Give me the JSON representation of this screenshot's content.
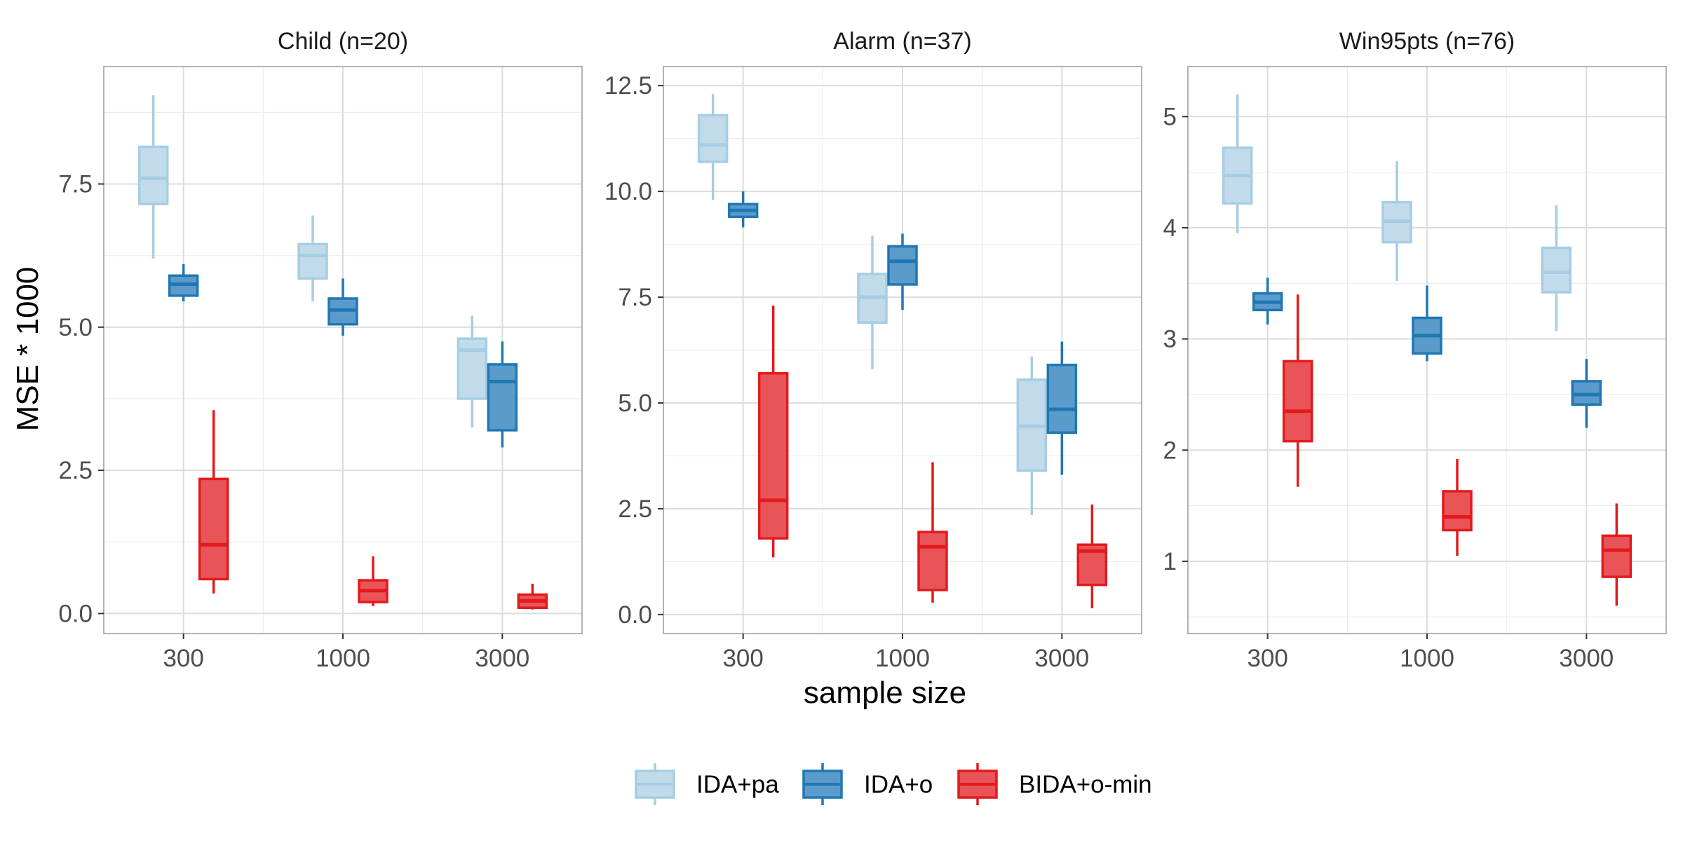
{
  "chart_data": {
    "type": "boxplot",
    "xlabel": "sample size",
    "ylabel": "MSE * 1000",
    "categories": [
      "300",
      "1000",
      "3000"
    ],
    "legend": {
      "position": "bottom",
      "entries": [
        {
          "label": "IDA+pa",
          "fill": "#c2dbeb",
          "stroke": "#a6cde3"
        },
        {
          "label": "IDA+o",
          "fill": "#5b9bcb",
          "stroke": "#1f78b4"
        },
        {
          "label": "BIDA+o-min",
          "fill": "#e95459",
          "stroke": "#e31a1c"
        }
      ]
    },
    "grid": true,
    "panels": [
      {
        "title": "Child (n=20)",
        "ylim": [
          -0.35,
          9.55
        ],
        "yticks": [
          {
            "value": 0,
            "label": "0.0"
          },
          {
            "value": 2.5,
            "label": "2.5"
          },
          {
            "value": 5,
            "label": "5.0"
          },
          {
            "value": 7.5,
            "label": "7.5"
          }
        ],
        "minor_yticks": [
          1.25,
          3.75,
          6.25,
          8.75
        ],
        "series": [
          {
            "name": "IDA+pa",
            "boxes": [
              {
                "min": 6.2,
                "q1": 7.15,
                "median": 7.6,
                "q3": 8.15,
                "max": 9.05
              },
              {
                "min": 5.45,
                "q1": 5.85,
                "median": 6.25,
                "q3": 6.45,
                "max": 6.95
              },
              {
                "min": 3.25,
                "q1": 3.75,
                "median": 4.6,
                "q3": 4.8,
                "max": 5.2
              }
            ]
          },
          {
            "name": "IDA+o",
            "boxes": [
              {
                "min": 5.45,
                "q1": 5.55,
                "median": 5.75,
                "q3": 5.9,
                "max": 6.1
              },
              {
                "min": 4.85,
                "q1": 5.05,
                "median": 5.3,
                "q3": 5.5,
                "max": 5.85
              },
              {
                "min": 2.9,
                "q1": 3.2,
                "median": 4.05,
                "q3": 4.35,
                "max": 4.75
              }
            ]
          },
          {
            "name": "BIDA+o-min",
            "boxes": [
              {
                "min": 0.35,
                "q1": 0.6,
                "median": 1.2,
                "q3": 2.35,
                "max": 3.55
              },
              {
                "min": 0.13,
                "q1": 0.2,
                "median": 0.4,
                "q3": 0.58,
                "max": 1.0
              },
              {
                "min": 0.07,
                "q1": 0.1,
                "median": 0.22,
                "q3": 0.33,
                "max": 0.52
              }
            ]
          }
        ]
      },
      {
        "title": "Alarm (n=37)",
        "ylim": [
          -0.45,
          12.95
        ],
        "yticks": [
          {
            "value": 0,
            "label": "0.0"
          },
          {
            "value": 2.5,
            "label": "2.5"
          },
          {
            "value": 5,
            "label": "5.0"
          },
          {
            "value": 7.5,
            "label": "7.5"
          },
          {
            "value": 10,
            "label": "10.0"
          },
          {
            "value": 12.5,
            "label": "12.5"
          }
        ],
        "minor_yticks": [
          1.25,
          3.75,
          6.25,
          8.75,
          11.25
        ],
        "series": [
          {
            "name": "IDA+pa",
            "boxes": [
              {
                "min": 9.8,
                "q1": 10.7,
                "median": 11.1,
                "q3": 11.8,
                "max": 12.3
              },
              {
                "min": 5.8,
                "q1": 6.9,
                "median": 7.5,
                "q3": 8.05,
                "max": 8.95
              },
              {
                "min": 2.35,
                "q1": 3.4,
                "median": 4.45,
                "q3": 5.55,
                "max": 6.1
              }
            ]
          },
          {
            "name": "IDA+o",
            "boxes": [
              {
                "min": 9.15,
                "q1": 9.4,
                "median": 9.55,
                "q3": 9.7,
                "max": 10.0
              },
              {
                "min": 7.2,
                "q1": 7.8,
                "median": 8.35,
                "q3": 8.7,
                "max": 9.0
              },
              {
                "min": 3.3,
                "q1": 4.3,
                "median": 4.85,
                "q3": 5.9,
                "max": 6.45
              }
            ]
          },
          {
            "name": "BIDA+o-min",
            "boxes": [
              {
                "min": 1.35,
                "q1": 1.8,
                "median": 2.7,
                "q3": 5.7,
                "max": 7.3
              },
              {
                "min": 0.28,
                "q1": 0.58,
                "median": 1.6,
                "q3": 1.95,
                "max": 3.6
              },
              {
                "min": 0.15,
                "q1": 0.7,
                "median": 1.5,
                "q3": 1.65,
                "max": 2.6
              }
            ]
          }
        ]
      },
      {
        "title": "Win95pts (n=76)",
        "ylim": [
          0.35,
          5.45
        ],
        "yticks": [
          {
            "value": 1,
            "label": "1"
          },
          {
            "value": 2,
            "label": "2"
          },
          {
            "value": 3,
            "label": "3"
          },
          {
            "value": 4,
            "label": "4"
          },
          {
            "value": 5,
            "label": "5"
          }
        ],
        "minor_yticks": [
          0.5,
          1.5,
          2.5,
          3.5,
          4.5
        ],
        "series": [
          {
            "name": "IDA+pa",
            "boxes": [
              {
                "min": 3.95,
                "q1": 4.22,
                "median": 4.47,
                "q3": 4.72,
                "max": 5.2
              },
              {
                "min": 3.52,
                "q1": 3.87,
                "median": 4.06,
                "q3": 4.23,
                "max": 4.6
              },
              {
                "min": 3.07,
                "q1": 3.42,
                "median": 3.6,
                "q3": 3.82,
                "max": 4.2
              }
            ]
          },
          {
            "name": "IDA+o",
            "boxes": [
              {
                "min": 3.13,
                "q1": 3.26,
                "median": 3.33,
                "q3": 3.41,
                "max": 3.55
              },
              {
                "min": 2.8,
                "q1": 2.87,
                "median": 3.03,
                "q3": 3.19,
                "max": 3.48
              },
              {
                "min": 2.2,
                "q1": 2.41,
                "median": 2.5,
                "q3": 2.62,
                "max": 2.82
              }
            ]
          },
          {
            "name": "BIDA+o-min",
            "boxes": [
              {
                "min": 1.67,
                "q1": 2.08,
                "median": 2.35,
                "q3": 2.8,
                "max": 3.4
              },
              {
                "min": 1.05,
                "q1": 1.28,
                "median": 1.4,
                "q3": 1.63,
                "max": 1.92
              },
              {
                "min": 0.6,
                "q1": 0.86,
                "median": 1.1,
                "q3": 1.23,
                "max": 1.52
              }
            ]
          }
        ]
      }
    ]
  }
}
